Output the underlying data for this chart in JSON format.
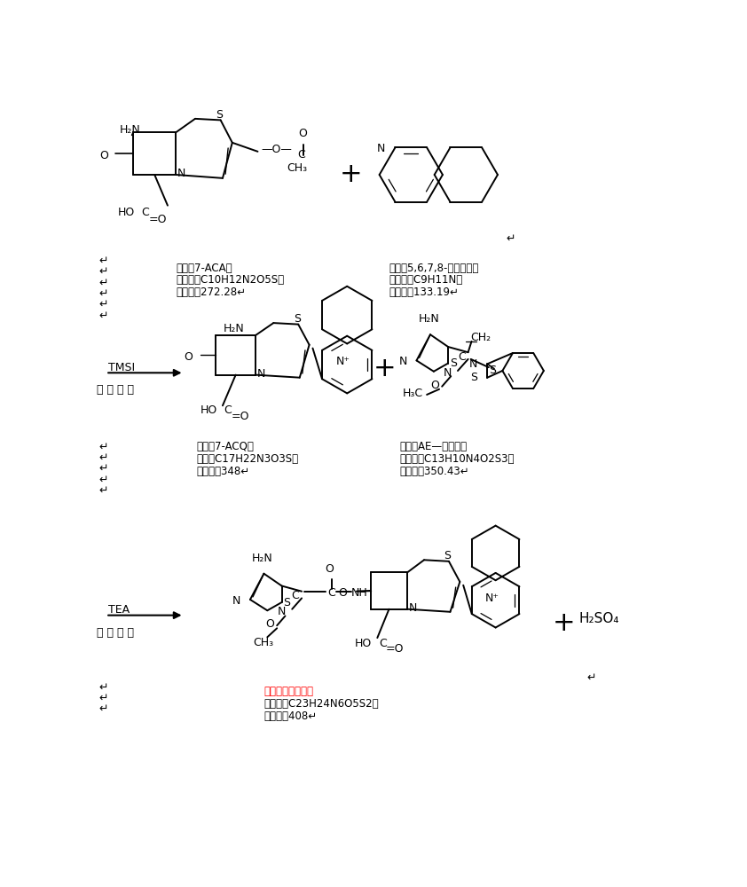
{
  "bg": "#ffffff",
  "s1_left_name": "名称：7-ACA，",
  "s1_left_form": "分子式：C10H12N2O5S，",
  "s1_left_mw": "分子量：272.28↵",
  "s1_right_name": "名称：5,6,7,8-四氮喔啊，",
  "s1_right_form": "分子式：C9H11N，",
  "s1_right_mw": "分子量：133.19↵",
  "s2_reagent_top": "TMSI",
  "s2_reagent_bot": "二 氯 甲 烷",
  "s2_left_name": "名称：7-ACQ，",
  "s2_left_form": "分子式C17H22N3O3S，",
  "s2_left_mw": "分子量：348↵",
  "s2_right_name": "名称：AE—活性酯，",
  "s2_right_form": "分子式：C13H10N4O2S3，",
  "s2_right_mw": "分子量：350.43↵",
  "s3_reagent_top": "TEA",
  "s3_reagent_bot": "二 氯 甲 烷",
  "s3_prod_name": "名称：头孢咔肒，",
  "s3_prod_form": "分子式：C23H24N6O5S2，",
  "s3_prod_mw": "分子量：408↵"
}
